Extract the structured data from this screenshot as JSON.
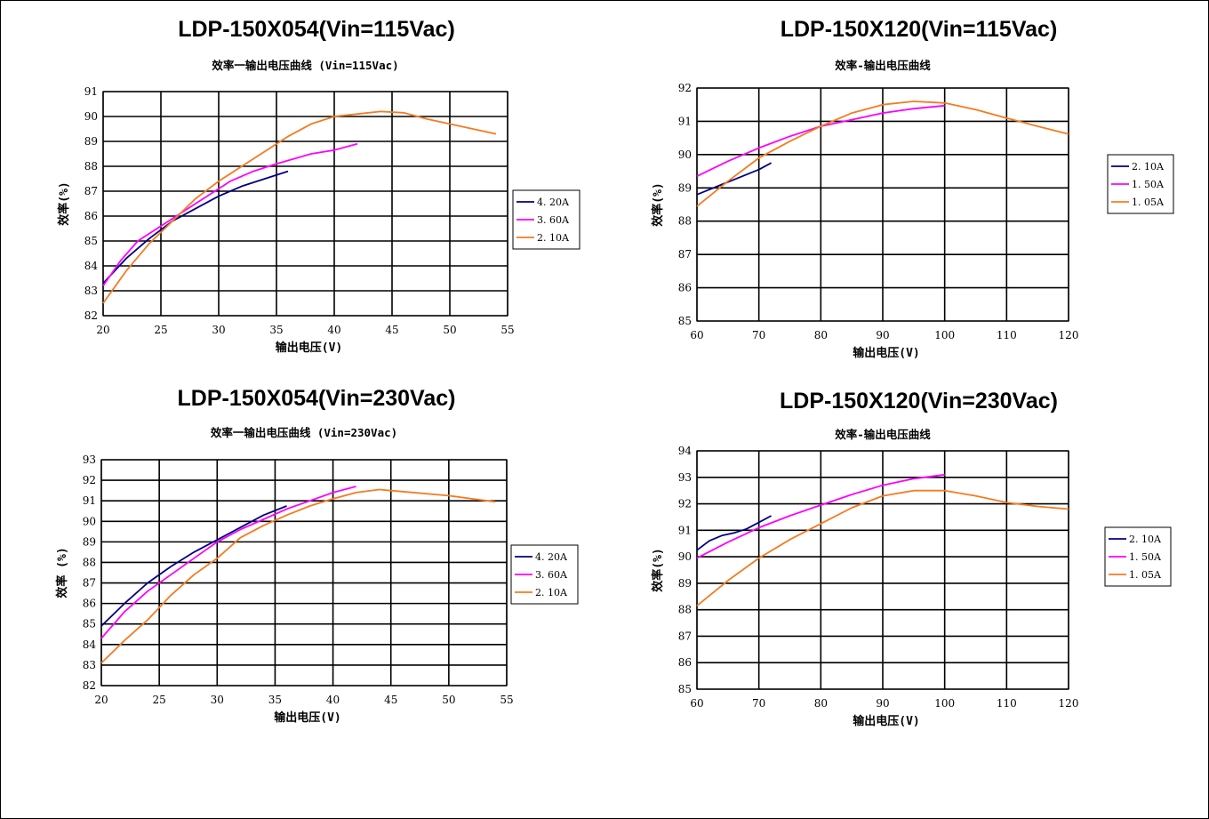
{
  "panels": [
    {
      "title": "LDP-150X054(Vin=115Vac)"
    },
    {
      "title": "LDP-150X120(Vin=115Vac)"
    },
    {
      "title": "LDP-150X054(Vin=230Vac)"
    },
    {
      "title": "LDP-150X120(Vin=230Vac)"
    }
  ],
  "chart_data": [
    {
      "type": "line",
      "title": "效率一输出电压曲线 (Vin=115Vac)",
      "xlabel": "输出电压(V)",
      "ylabel": "效率(%)",
      "xlim": [
        20,
        55
      ],
      "ylim": [
        82,
        91
      ],
      "xticks": [
        20,
        25,
        30,
        35,
        40,
        45,
        50,
        55
      ],
      "yticks": [
        82,
        83,
        84,
        85,
        86,
        87,
        88,
        89,
        90,
        91
      ],
      "grid": true,
      "legend_position": "right",
      "series": [
        {
          "name": "4.20A",
          "color": "#000080",
          "x": [
            20,
            22,
            24,
            26,
            28,
            30,
            32,
            34,
            36
          ],
          "y": [
            83.3,
            84.3,
            85.1,
            85.8,
            86.3,
            86.8,
            87.2,
            87.5,
            87.8
          ]
        },
        {
          "name": "3.60A",
          "color": "#ff00ff",
          "x": [
            20,
            21.5,
            23,
            25,
            27,
            29,
            31,
            33,
            35,
            38,
            40,
            42
          ],
          "y": [
            83.2,
            84.2,
            85.0,
            85.6,
            86.2,
            86.8,
            87.4,
            87.8,
            88.1,
            88.5,
            88.65,
            88.9
          ]
        },
        {
          "name": "2.10A",
          "color": "#f47b20",
          "x": [
            20,
            22,
            24,
            26,
            28,
            30,
            32,
            34,
            36,
            38,
            40,
            42,
            44,
            46,
            48,
            50,
            52,
            54
          ],
          "y": [
            82.5,
            83.8,
            84.9,
            85.8,
            86.7,
            87.4,
            88.0,
            88.6,
            89.2,
            89.7,
            90.0,
            90.1,
            90.2,
            90.15,
            89.9,
            89.7,
            89.5,
            89.3
          ]
        }
      ]
    },
    {
      "type": "line",
      "title": "效率-输出电压曲线",
      "xlabel": "输出电压(V)",
      "ylabel": "效率(%)",
      "xlim": [
        60,
        120
      ],
      "ylim": [
        85,
        92
      ],
      "xticks": [
        60,
        70,
        80,
        90,
        100,
        110,
        120
      ],
      "yticks": [
        85,
        86,
        87,
        88,
        89,
        90,
        91,
        92
      ],
      "grid": true,
      "legend_position": "right",
      "series": [
        {
          "name": "2.10A",
          "color": "#000080",
          "x": [
            60,
            62,
            64,
            66,
            68,
            70,
            72
          ],
          "y": [
            88.8,
            88.95,
            89.1,
            89.25,
            89.4,
            89.55,
            89.75
          ]
        },
        {
          "name": "1.50A",
          "color": "#ff00ff",
          "x": [
            60,
            65,
            70,
            75,
            80,
            85,
            90,
            95,
            100
          ],
          "y": [
            89.35,
            89.8,
            90.2,
            90.55,
            90.85,
            91.05,
            91.25,
            91.38,
            91.47
          ]
        },
        {
          "name": "1.05A",
          "color": "#f47b20",
          "x": [
            60,
            65,
            70,
            75,
            80,
            85,
            90,
            95,
            100,
            105,
            110,
            115,
            120
          ],
          "y": [
            88.45,
            89.2,
            89.9,
            90.4,
            90.85,
            91.25,
            91.5,
            91.6,
            91.55,
            91.35,
            91.1,
            90.85,
            90.62
          ]
        }
      ]
    },
    {
      "type": "line",
      "title": "效率一输出电压曲线 (Vin=230Vac)",
      "xlabel": "输出电压(V)",
      "ylabel": "效率 (%)",
      "xlim": [
        20,
        55
      ],
      "ylim": [
        82,
        93
      ],
      "xticks": [
        20,
        25,
        30,
        35,
        40,
        45,
        50,
        55
      ],
      "yticks": [
        82,
        83,
        84,
        85,
        86,
        87,
        88,
        89,
        90,
        91,
        92,
        93
      ],
      "grid": true,
      "legend_position": "right",
      "series": [
        {
          "name": "4.20A",
          "color": "#000080",
          "x": [
            20,
            22,
            24,
            26,
            28,
            30,
            32,
            34,
            36
          ],
          "y": [
            84.9,
            86.0,
            87.0,
            87.8,
            88.5,
            89.1,
            89.7,
            90.3,
            90.75
          ]
        },
        {
          "name": "3.60A",
          "color": "#ff00ff",
          "x": [
            20,
            22,
            24,
            26,
            28,
            30,
            32,
            34,
            36,
            38,
            40,
            42
          ],
          "y": [
            84.3,
            85.6,
            86.6,
            87.4,
            88.2,
            89.0,
            89.6,
            90.1,
            90.6,
            91.0,
            91.4,
            91.7
          ]
        },
        {
          "name": "2.10A",
          "color": "#f47b20",
          "x": [
            20,
            22,
            24,
            26,
            28,
            30,
            32,
            34,
            36,
            38,
            40,
            42,
            44,
            46,
            48,
            50,
            52,
            54
          ],
          "y": [
            83.1,
            84.2,
            85.2,
            86.4,
            87.4,
            88.2,
            89.2,
            89.8,
            90.3,
            90.75,
            91.1,
            91.4,
            91.55,
            91.45,
            91.35,
            91.25,
            91.1,
            90.95
          ]
        }
      ]
    },
    {
      "type": "line",
      "title": "效率-输出电压曲线",
      "xlabel": "输出电压(V)",
      "ylabel": "效率(%)",
      "xlim": [
        60,
        120
      ],
      "ylim": [
        85,
        94
      ],
      "xticks": [
        60,
        70,
        80,
        90,
        100,
        110,
        120
      ],
      "yticks": [
        85,
        86,
        87,
        88,
        89,
        90,
        91,
        92,
        93,
        94
      ],
      "grid": true,
      "legend_position": "right",
      "series": [
        {
          "name": "2.10A",
          "color": "#000080",
          "x": [
            60,
            62,
            64,
            66,
            68,
            70,
            72
          ],
          "y": [
            90.25,
            90.6,
            90.8,
            90.9,
            91.05,
            91.3,
            91.55
          ]
        },
        {
          "name": "1.50A",
          "color": "#ff00ff",
          "x": [
            60,
            65,
            70,
            75,
            80,
            85,
            90,
            95,
            100
          ],
          "y": [
            89.95,
            90.55,
            91.1,
            91.55,
            91.95,
            92.35,
            92.7,
            92.95,
            93.1
          ]
        },
        {
          "name": "1.05A",
          "color": "#f47b20",
          "x": [
            60,
            65,
            70,
            75,
            80,
            85,
            90,
            95,
            100,
            105,
            110,
            115,
            120
          ],
          "y": [
            88.15,
            89.1,
            89.95,
            90.65,
            91.25,
            91.85,
            92.3,
            92.5,
            92.5,
            92.3,
            92.05,
            91.9,
            91.8
          ]
        }
      ]
    }
  ]
}
